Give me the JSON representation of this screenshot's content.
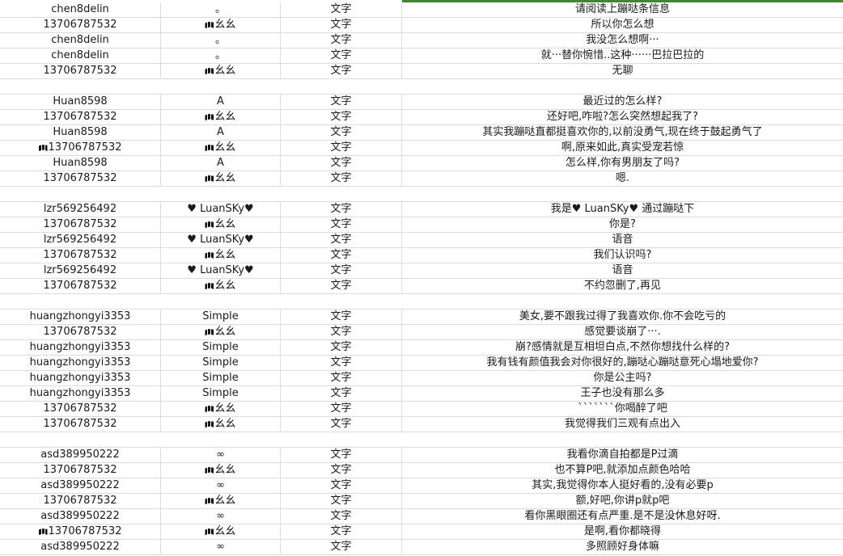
{
  "sheet": {
    "active_color": "#3c8a2e",
    "rows": [
      {
        "user": "chen8delin",
        "nick": "。",
        "type": "文字",
        "msg": "请阅读上蹦哒条信息"
      },
      {
        "user": "13706787532",
        "nick": "幺幺",
        "nick_icon": true,
        "type": "文字",
        "msg": "所以你怎么想"
      },
      {
        "user": "chen8delin",
        "nick": "。",
        "type": "文字",
        "msg": "我没怎么想啊···"
      },
      {
        "user": "chen8delin",
        "nick": "。",
        "type": "文字",
        "msg": "就···替你惋惜..这种······巴拉巴拉的"
      },
      {
        "user": "13706787532",
        "nick": "幺幺",
        "nick_icon": true,
        "type": "文字",
        "msg": "无聊"
      },
      {
        "blank": true
      },
      {
        "user": "Huan8598",
        "nick": "A",
        "type": "文字",
        "msg": "最近过的怎么样?"
      },
      {
        "user": "13706787532",
        "nick": "幺幺",
        "nick_icon": true,
        "type": "文字",
        "msg": "还好吧,咋啦?怎么突然想起我了?"
      },
      {
        "user": "Huan8598",
        "nick": "A",
        "type": "文字",
        "msg": "其实我蹦哒直都挺喜欢你的,以前没勇气,现在终于鼓起勇气了"
      },
      {
        "user": "13706787532",
        "user_icon": true,
        "nick": "幺幺",
        "nick_icon": true,
        "type": "文字",
        "msg": "啊,原来如此,真实受宠若惊"
      },
      {
        "user": "Huan8598",
        "nick": "A",
        "type": "文字",
        "msg": "怎么样,你有男朋友了吗?"
      },
      {
        "user": "13706787532",
        "nick": "幺幺",
        "nick_icon": true,
        "type": "文字",
        "msg": "嗯."
      },
      {
        "blank": true
      },
      {
        "user": "lzr569256492",
        "nick": "♥ LuanSKy♥",
        "type": "文字",
        "msg": "我是♥ LuanSKy♥ 通过蹦哒下"
      },
      {
        "user": "13706787532",
        "nick": "幺幺",
        "nick_icon": true,
        "type": "文字",
        "msg": "你是?"
      },
      {
        "user": "lzr569256492",
        "nick": "♥ LuanSKy♥",
        "type": "文字",
        "msg": "语音"
      },
      {
        "user": "13706787532",
        "nick": "幺幺",
        "nick_icon": true,
        "type": "文字",
        "msg": "我们认识吗?"
      },
      {
        "user": "lzr569256492",
        "nick": "♥ LuanSKy♥",
        "type": "文字",
        "msg": "语音"
      },
      {
        "user": "13706787532",
        "nick": "幺幺",
        "nick_icon": true,
        "type": "文字",
        "msg": "不约忽删了,再见"
      },
      {
        "blank": true
      },
      {
        "user": "huangzhongyi3353",
        "nick": "Simple",
        "type": "文字",
        "msg": "美女,要不跟我过得了我喜欢你.你不会吃亏的"
      },
      {
        "user": "13706787532",
        "nick": "幺幺",
        "nick_icon": true,
        "type": "文字",
        "msg": "感觉要谈崩了···."
      },
      {
        "user": "huangzhongyi3353",
        "nick": "Simple",
        "type": "文字",
        "msg": "崩?感情就是互相坦白点,不然你想找什么样的?"
      },
      {
        "user": "huangzhongyi3353",
        "nick": "Simple",
        "type": "文字",
        "msg": "我有钱有颜值我会对你很好的,蹦哒心蹦哒意死心塌地爱你?"
      },
      {
        "user": "huangzhongyi3353",
        "nick": "Simple",
        "type": "文字",
        "msg": "你是公主吗?"
      },
      {
        "user": "huangzhongyi3353",
        "nick": "Simple",
        "type": "文字",
        "msg": "王子也没有那么多"
      },
      {
        "user": "13706787532",
        "nick": "幺幺",
        "nick_icon": true,
        "type": "文字",
        "msg": "```````你喝醉了吧"
      },
      {
        "user": "13706787532",
        "nick": "幺幺",
        "nick_icon": true,
        "type": "文字",
        "msg": "我觉得我们三观有点出入"
      },
      {
        "blank": true
      },
      {
        "user": "asd389950222",
        "nick": "∞",
        "type": "文字",
        "msg": "我看你滴自拍都是P过滴"
      },
      {
        "user": "13706787532",
        "nick": "幺幺",
        "nick_icon": true,
        "type": "文字",
        "msg": "也不算P吧,就添加点颜色哈哈"
      },
      {
        "user": "asd389950222",
        "nick": "∞",
        "type": "文字",
        "msg": "其实,我觉得你本人挺好看的,没有必要p"
      },
      {
        "user": "13706787532",
        "nick": "幺幺",
        "nick_icon": true,
        "type": "文字",
        "msg": "额,好吧,你讲p就p吧"
      },
      {
        "user": "asd389950222",
        "nick": "∞",
        "type": "文字",
        "msg": "看你黑眼圈还有点严重.是不是没休息好呀."
      },
      {
        "user": "13706787532",
        "user_icon": true,
        "nick": "幺幺",
        "nick_icon": true,
        "type": "文字",
        "msg": "是啊,看你都晓得"
      },
      {
        "user": "asd389950222",
        "nick": "∞",
        "type": "文字",
        "msg": "多照顾好身体嘛"
      }
    ]
  }
}
